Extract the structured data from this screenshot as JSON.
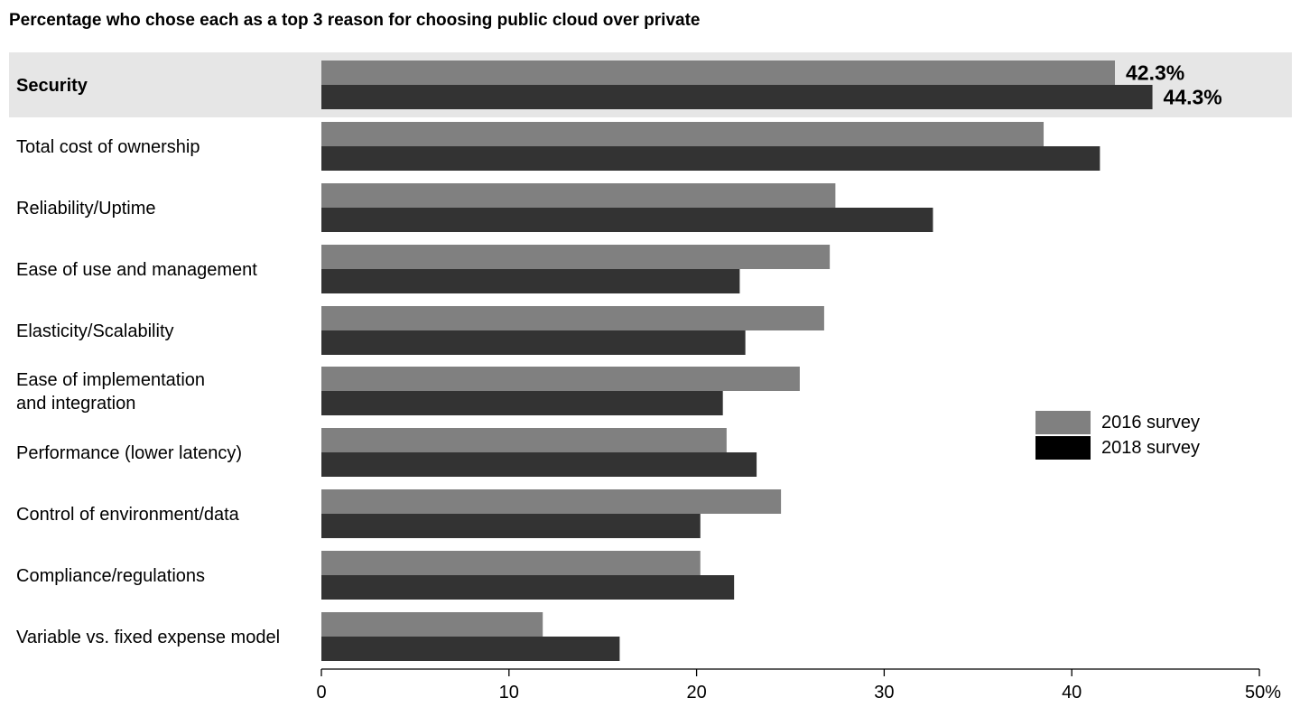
{
  "title": "Percentage who chose each as a top 3 reason for choosing public cloud over private",
  "colors": {
    "series_2016": "#808080",
    "series_2018": "#333333",
    "legend_2018": "#000000",
    "highlight_band": "#e6e6e6"
  },
  "chart_data": {
    "type": "bar",
    "orientation": "horizontal",
    "categories": [
      "Security",
      "Total cost of ownership",
      "Reliability/Uptime",
      "Ease of use and management",
      "Elasticity/Scalability",
      "Ease of implementation\nand integration",
      "Performance (lower latency)",
      "Control of environment/data",
      "Compliance/regulations",
      "Variable vs. fixed expense model"
    ],
    "highlighted_category": "Security",
    "series": [
      {
        "name": "2016 survey",
        "values": [
          42.3,
          38.5,
          27.4,
          27.1,
          26.8,
          25.5,
          21.6,
          24.5,
          20.2,
          11.8
        ]
      },
      {
        "name": "2018 survey",
        "values": [
          44.3,
          41.5,
          32.6,
          22.3,
          22.6,
          21.4,
          23.2,
          20.2,
          22.0,
          15.9
        ]
      }
    ],
    "data_labels": [
      "42.3%",
      "44.3%"
    ],
    "xlim": [
      0,
      50
    ],
    "xticks": [
      0,
      10,
      20,
      30,
      40,
      50
    ],
    "xtick_labels": [
      "0",
      "10",
      "20",
      "30",
      "40",
      "50%"
    ],
    "legend_position": "right",
    "grid": false
  }
}
